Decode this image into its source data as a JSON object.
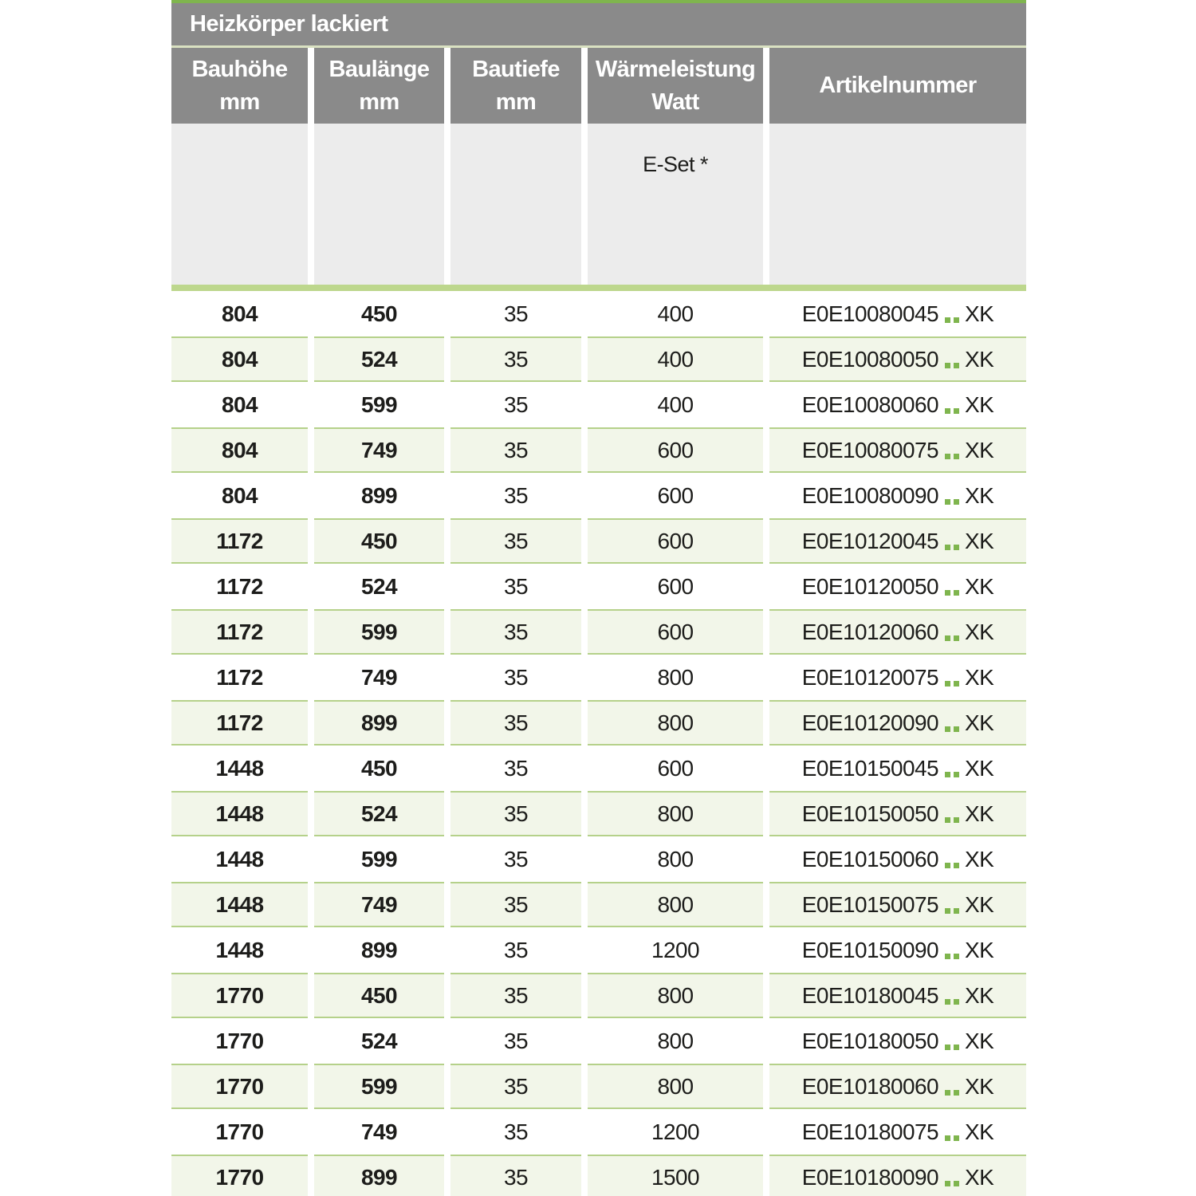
{
  "table": {
    "title": "Heizkörper lackiert",
    "columns": [
      {
        "label": "Bauhöhe",
        "unit": "mm"
      },
      {
        "label": "Baulänge",
        "unit": "mm"
      },
      {
        "label": "Bautiefe",
        "unit": "mm"
      },
      {
        "label": "Wärmeleistung",
        "unit": "Watt"
      },
      {
        "label": "Artikelnummer",
        "unit": ""
      }
    ],
    "subheader": {
      "e_set_label": "E-Set *"
    },
    "article_separator": "..",
    "rows": [
      {
        "bauhoehe": "804",
        "baulaenge": "450",
        "bautiefe": "35",
        "watt": "400",
        "artikel_prefix": "E0E10080045",
        "artikel_suffix": "XK"
      },
      {
        "bauhoehe": "804",
        "baulaenge": "524",
        "bautiefe": "35",
        "watt": "400",
        "artikel_prefix": "E0E10080050",
        "artikel_suffix": "XK"
      },
      {
        "bauhoehe": "804",
        "baulaenge": "599",
        "bautiefe": "35",
        "watt": "400",
        "artikel_prefix": "E0E10080060",
        "artikel_suffix": "XK"
      },
      {
        "bauhoehe": "804",
        "baulaenge": "749",
        "bautiefe": "35",
        "watt": "600",
        "artikel_prefix": "E0E10080075",
        "artikel_suffix": "XK"
      },
      {
        "bauhoehe": "804",
        "baulaenge": "899",
        "bautiefe": "35",
        "watt": "600",
        "artikel_prefix": "E0E10080090",
        "artikel_suffix": "XK"
      },
      {
        "bauhoehe": "1172",
        "baulaenge": "450",
        "bautiefe": "35",
        "watt": "600",
        "artikel_prefix": "E0E10120045",
        "artikel_suffix": "XK"
      },
      {
        "bauhoehe": "1172",
        "baulaenge": "524",
        "bautiefe": "35",
        "watt": "600",
        "artikel_prefix": "E0E10120050",
        "artikel_suffix": "XK"
      },
      {
        "bauhoehe": "1172",
        "baulaenge": "599",
        "bautiefe": "35",
        "watt": "600",
        "artikel_prefix": "E0E10120060",
        "artikel_suffix": "XK"
      },
      {
        "bauhoehe": "1172",
        "baulaenge": "749",
        "bautiefe": "35",
        "watt": "800",
        "artikel_prefix": "E0E10120075",
        "artikel_suffix": "XK"
      },
      {
        "bauhoehe": "1172",
        "baulaenge": "899",
        "bautiefe": "35",
        "watt": "800",
        "artikel_prefix": "E0E10120090",
        "artikel_suffix": "XK"
      },
      {
        "bauhoehe": "1448",
        "baulaenge": "450",
        "bautiefe": "35",
        "watt": "600",
        "artikel_prefix": "E0E10150045",
        "artikel_suffix": "XK"
      },
      {
        "bauhoehe": "1448",
        "baulaenge": "524",
        "bautiefe": "35",
        "watt": "800",
        "artikel_prefix": "E0E10150050",
        "artikel_suffix": "XK"
      },
      {
        "bauhoehe": "1448",
        "baulaenge": "599",
        "bautiefe": "35",
        "watt": "800",
        "artikel_prefix": "E0E10150060",
        "artikel_suffix": "XK"
      },
      {
        "bauhoehe": "1448",
        "baulaenge": "749",
        "bautiefe": "35",
        "watt": "800",
        "artikel_prefix": "E0E10150075",
        "artikel_suffix": "XK"
      },
      {
        "bauhoehe": "1448",
        "baulaenge": "899",
        "bautiefe": "35",
        "watt": "1200",
        "artikel_prefix": "E0E10150090",
        "artikel_suffix": "XK"
      },
      {
        "bauhoehe": "1770",
        "baulaenge": "450",
        "bautiefe": "35",
        "watt": "800",
        "artikel_prefix": "E0E10180045",
        "artikel_suffix": "XK"
      },
      {
        "bauhoehe": "1770",
        "baulaenge": "524",
        "bautiefe": "35",
        "watt": "800",
        "artikel_prefix": "E0E10180050",
        "artikel_suffix": "XK"
      },
      {
        "bauhoehe": "1770",
        "baulaenge": "599",
        "bautiefe": "35",
        "watt": "800",
        "artikel_prefix": "E0E10180060",
        "artikel_suffix": "XK"
      },
      {
        "bauhoehe": "1770",
        "baulaenge": "749",
        "bautiefe": "35",
        "watt": "1200",
        "artikel_prefix": "E0E10180075",
        "artikel_suffix": "XK"
      },
      {
        "bauhoehe": "1770",
        "baulaenge": "899",
        "bautiefe": "35",
        "watt": "1500",
        "artikel_prefix": "E0E10180090",
        "artikel_suffix": "XK"
      }
    ]
  },
  "colors": {
    "header_gray": "#8a8a8a",
    "subheader_gray": "#ececec",
    "accent_green": "#7fb54e",
    "band_green": "#bdd78d",
    "row_green": "#f2f6e9",
    "row_border_green": "#b5d18a",
    "pale_line_green": "#d9e1c1",
    "text_dark": "#1d1d1b"
  }
}
